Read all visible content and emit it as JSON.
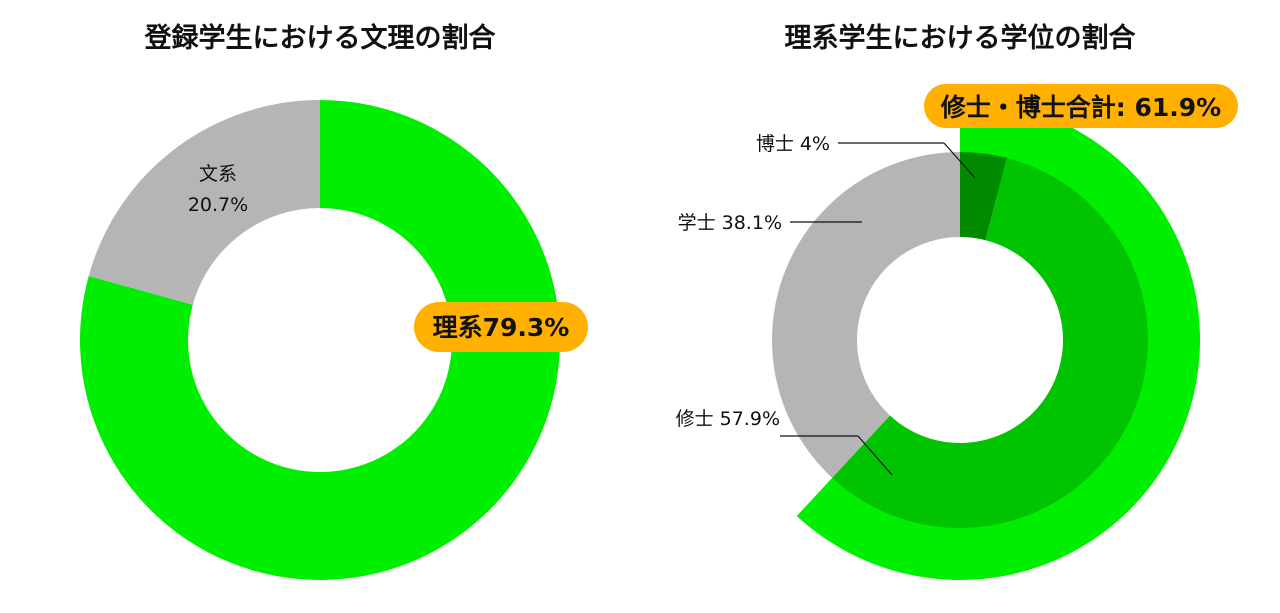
{
  "colors": {
    "arts_gray": "#b5b5b5",
    "science_green": "#00ee00",
    "master_green": "#00c400",
    "doctor_green": "#008a00",
    "badge_orange": "#ffb000",
    "leader_line": "#111111"
  },
  "chart_data": [
    {
      "type": "pie",
      "title": "登録学生における文理の割合",
      "slices": [
        {
          "label": "理系",
          "value": 79.3,
          "value_text": "79.3%",
          "display": "理系79.3%",
          "highlight": true
        },
        {
          "label": "文系",
          "value": 20.7,
          "value_text": "20.7%",
          "highlight": false
        }
      ]
    },
    {
      "type": "pie",
      "title": "理系学生における学位の割合",
      "slices": [
        {
          "label": "博士",
          "value": 4.0,
          "display": "博士 4%"
        },
        {
          "label": "修士",
          "value": 57.9,
          "display": "修士 57.9%"
        },
        {
          "label": "学士",
          "value": 38.1,
          "display": "学士 38.1%"
        }
      ],
      "combined": {
        "label": "修士・博士合計",
        "value": 61.9,
        "display": "修士・博士合計: 61.9%"
      }
    }
  ]
}
